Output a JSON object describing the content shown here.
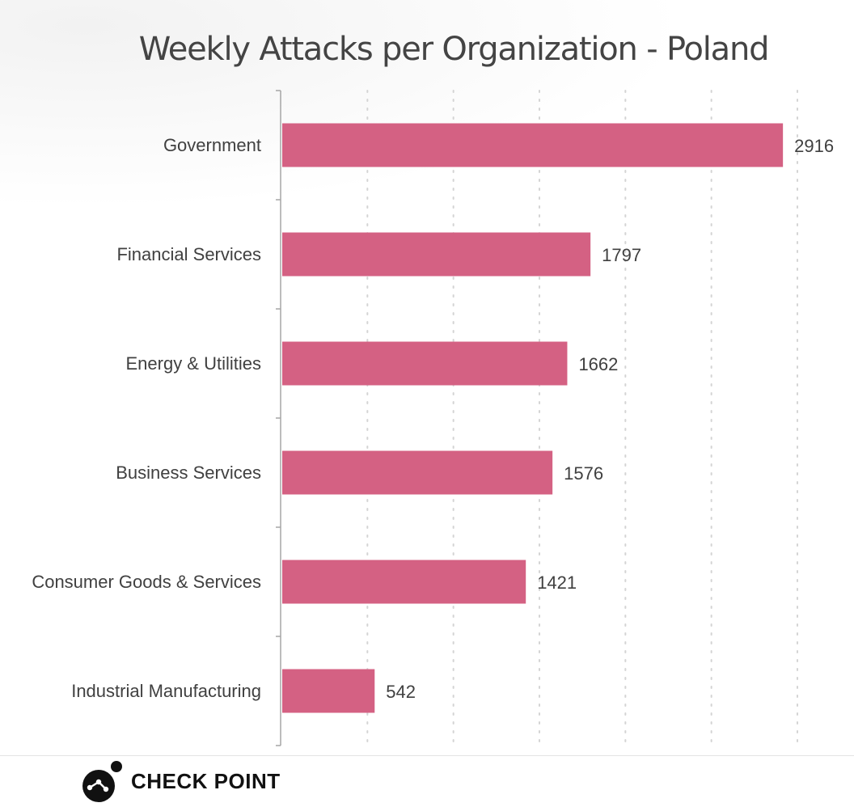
{
  "chart_data": {
    "type": "bar",
    "orientation": "horizontal",
    "title": "Weekly Attacks per Organization - Poland",
    "categories": [
      "Government",
      "Financial Services",
      "Energy & Utilities",
      "Business Services",
      "Consumer Goods & Services",
      "Industrial Manufacturing"
    ],
    "values": [
      2916,
      1797,
      1662,
      1576,
      1421,
      542
    ],
    "data_labels": [
      "2916",
      "1797",
      "1662",
      "1576",
      "1421",
      "542"
    ],
    "xlim": [
      0,
      3000
    ],
    "grid": true,
    "legend": "none",
    "bar_color": "#d46183"
  },
  "brand": {
    "name": "CHECK POINT",
    "logo_icon": "checkpoint-logo-icon",
    "logo_color": "#111111"
  }
}
